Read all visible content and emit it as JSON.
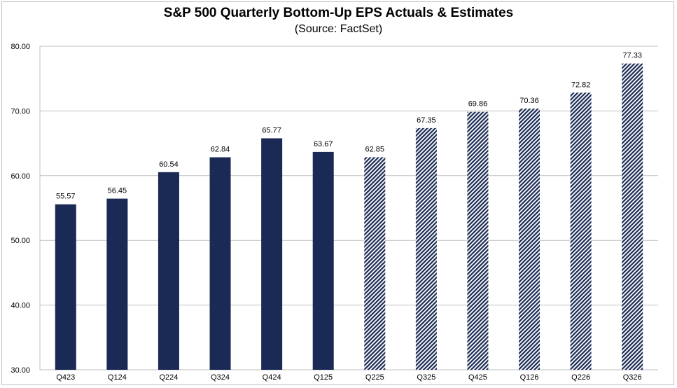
{
  "chart_data": {
    "type": "bar",
    "title": "S&P 500 Quarterly Bottom-Up EPS Actuals & Estimates",
    "subtitle": "(Source: FactSet)",
    "xlabel": "",
    "ylabel": "",
    "ylim": [
      30,
      80
    ],
    "yticks": [
      "30.00",
      "40.00",
      "50.00",
      "60.00",
      "70.00",
      "80.00"
    ],
    "grid": true,
    "categories": [
      "Q423",
      "Q124",
      "Q224",
      "Q324",
      "Q424",
      "Q125",
      "Q225",
      "Q325",
      "Q425",
      "Q126",
      "Q226",
      "Q326"
    ],
    "series": [
      {
        "values": [
          55.57,
          56.45,
          60.54,
          62.84,
          65.77,
          63.67,
          null,
          null,
          null,
          null,
          null,
          null
        ],
        "color": "#1b2a54",
        "fill": "solid"
      },
      {
        "values": [
          null,
          null,
          null,
          null,
          null,
          null,
          62.85,
          67.35,
          69.86,
          70.36,
          72.82,
          77.33
        ],
        "color": "#1b2a54",
        "fill": "hatched"
      }
    ],
    "data_labels": [
      "55.57",
      "56.45",
      "60.54",
      "62.84",
      "65.77",
      "63.67",
      "62.85",
      "67.35",
      "69.86",
      "70.36",
      "72.82",
      "77.33"
    ]
  }
}
